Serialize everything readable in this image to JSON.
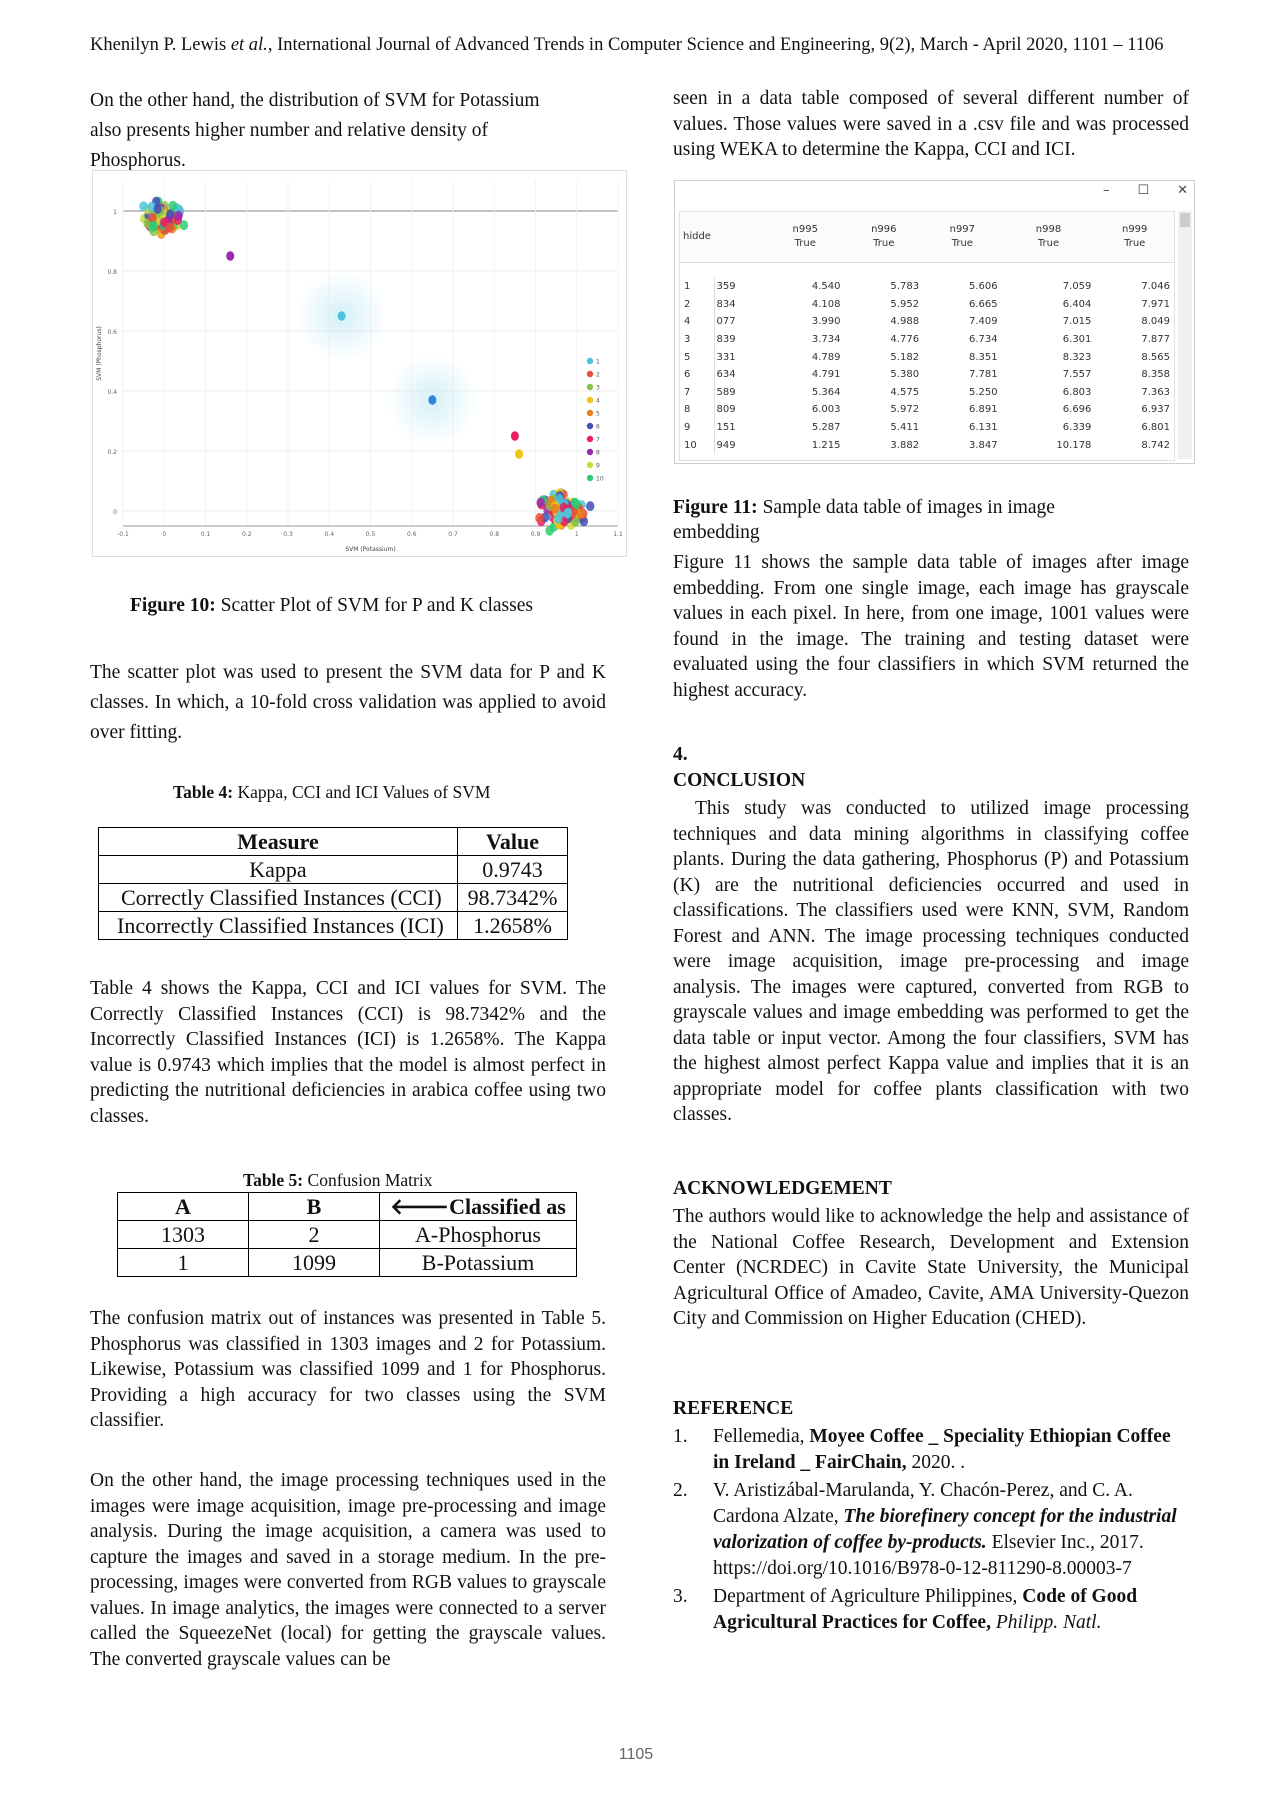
{
  "header": {
    "authors": "Khenilyn P. Lewis ",
    "etal": "et al.",
    "journal": ", International Journal of Advanced Trends in Computer Science and Engineering, 9(2), March - April 2020, 1101 – 1106"
  },
  "left": {
    "intro": "On the other hand, the distribution of SVM for Potassium also presents higher number and relative density of Phosphorus.",
    "fig10_label": "Figure 10:",
    "fig10_text": " Scatter Plot of SVM for P and K classes",
    "scatter_para": "The scatter plot was used to present the SVM data for P and K classes. In which, a 10-fold cross validation was applied to avoid over fitting.",
    "table4_label": "Table 4:",
    "table4_text": " Kappa, CCI and ICI Values of SVM",
    "table4_head": [
      "Measure",
      "Value"
    ],
    "table4_rows": [
      [
        "Kappa",
        "0.9743"
      ],
      [
        "Correctly Classified Instances (CCI)",
        "98.7342%"
      ],
      [
        "Incorrectly Classified Instances (ICI)",
        "1.2658%"
      ]
    ],
    "table4_para": "Table 4 shows the Kappa, CCI and ICI values for SVM. The Correctly Classified Instances (CCI) is 98.7342% and the Incorrectly Classified Instances (ICI) is 1.2658%. The Kappa value is 0.9743 which implies that the model is almost perfect in predicting the nutritional deficiencies in arabica coffee using two classes.",
    "table5_label": "Table 5:",
    "table5_text": " Confusion Matrix",
    "table5_head": [
      "A",
      "B",
      "🡐Classified as"
    ],
    "table5_rows": [
      [
        "1303",
        "2",
        "A-Phosphorus"
      ],
      [
        "1",
        "1099",
        "B-Potassium"
      ]
    ],
    "confusion_para": "The confusion matrix out of instances was presented in Table 5. Phosphorus was classified in 1303 images and 2 for Potassium. Likewise, Potassium was classified 1099 and 1 for Phosphorus. Providing a high accuracy for two classes using the SVM classifier.",
    "processing_para": "On the other hand, the image processing techniques used in the images were image acquisition, image pre-processing and image analysis. During the image acquisition, a camera was used to capture the images and saved in a storage medium. In the pre-processing, images were converted from RGB values to grayscale values. In image analytics, the images were connected to a server called the SqueezeNet (local) for getting the grayscale values. The converted grayscale values can be"
  },
  "right": {
    "top_para": "seen in a data table composed of several different number of values. Those values were saved in a .csv file and was processed using WEKA to determine the Kappa, CCI and ICI.",
    "window_controls": [
      "–",
      "☐",
      "✕"
    ],
    "fig11_label": "Figure 11:",
    "fig11_text": " Sample data table of images in image embedding",
    "fig11_para": "Figure 11 shows the sample data table of images after image embedding. From one single image, each image has grayscale values in each pixel. In here, from one image, 1001 values were found in the image. The training and testing dataset were evaluated using the four classifiers in which SVM returned the highest accuracy.",
    "conclusion_num": "4.",
    "conclusion_title": "CONCLUSION",
    "conclusion_para": "This study was conducted to utilized image processing techniques and data mining algorithms in classifying coffee plants. During the data gathering, Phosphorus (P) and Potassium (K) are the nutritional deficiencies occurred and used in classifications. The classifiers used were KNN, SVM, Random Forest and ANN. The image processing techniques conducted were image acquisition, image pre-processing and image analysis. The images were captured, converted from RGB to grayscale values and image embedding was performed to get the data table or input vector. Among the four classifiers, SVM has the highest almost perfect Kappa value and implies that it is an appropriate model for coffee plants classification with two classes.",
    "ack_title": "ACKNOWLEDGEMENT",
    "ack_para": "The authors would like to acknowledge the help and assistance of the National Coffee Research, Development and Extension Center (NCRDEC) in Cavite State University, the Municipal Agricultural Office of Amadeo, Cavite, AMA University-Quezon City and Commission on Higher Education (CHED).",
    "ref_title": "REFERENCE",
    "ref1_num": "1.",
    "ref1_a": "Fellemedia, ",
    "ref1_b": "Moyee Coffee _ Speciality Ethiopian Coffee in Ireland _ FairChain,",
    "ref1_c": " 2020. .",
    "ref2_num": "2.",
    "ref2_a": "V. Aristizábal-Marulanda, Y. Chacón-Perez, and C. A. Cardona Alzate, ",
    "ref2_b": "The biorefinery concept for the industrial valorization of coffee by-products.",
    "ref2_c": " Elsevier Inc., 2017. https://doi.org/10.1016/B978-0-12-811290-8.00003-7",
    "ref3_num": "3.",
    "ref3_a": "Department of Agriculture Philippines, ",
    "ref3_b": "Code of Good Agricultural Practices for Coffee,",
    "ref3_c": " Philipp. Natl."
  },
  "weka": {
    "corner": "hidde",
    "columns": [
      "n995",
      "n996",
      "n997",
      "n998",
      "n999"
    ],
    "column_sub": "True",
    "rows": [
      [
        "1",
        "359",
        "4.540",
        "5.783",
        "5.606",
        "7.059",
        "7.046"
      ],
      [
        "2",
        "834",
        "4.108",
        "5.952",
        "6.665",
        "6.404",
        "7.971"
      ],
      [
        "4",
        "077",
        "3.990",
        "4.988",
        "7.409",
        "7.015",
        "8.049"
      ],
      [
        "3",
        "839",
        "3.734",
        "4.776",
        "6.734",
        "6.301",
        "7.877"
      ],
      [
        "5",
        "331",
        "4.789",
        "5.182",
        "8.351",
        "8.323",
        "8.565"
      ],
      [
        "6",
        "634",
        "4.791",
        "5.380",
        "7.781",
        "7.557",
        "8.358"
      ],
      [
        "7",
        "589",
        "5.364",
        "4.575",
        "5.250",
        "6.803",
        "7.363"
      ],
      [
        "8",
        "809",
        "6.003",
        "5.972",
        "6.891",
        "6.696",
        "6.937"
      ],
      [
        "9",
        "151",
        "5.287",
        "5.411",
        "6.131",
        "6.339",
        "6.801"
      ],
      [
        "10",
        "949",
        "1.215",
        "3.882",
        "3.847",
        "10.178",
        "8.742"
      ]
    ]
  },
  "chart_data": {
    "type": "scatter",
    "xlabel": "SVM (Potassium)",
    "ylabel": "SVM (Phosphorus)",
    "x_ticks": [
      "-0.1",
      "0",
      "0.1",
      "0.2",
      "0.3",
      "0.4",
      "0.5",
      "0.6",
      "0.7",
      "0.8",
      "0.9",
      "1",
      "1.1"
    ],
    "y_ticks": [
      "0",
      "0.2",
      "0.4",
      "0.6",
      "0.8",
      "1"
    ],
    "xlim": [
      -0.1,
      1.1
    ],
    "ylim": [
      -0.05,
      1.1
    ],
    "legend_labels": [
      "1",
      "2",
      "3",
      "4",
      "5",
      "6",
      "7",
      "8",
      "9",
      "10"
    ],
    "legend_colors": [
      "#4fc3d9",
      "#e74c3c",
      "#8bc34a",
      "#f1c40f",
      "#e67e22",
      "#3f51b5",
      "#e91e63",
      "#9c27b0",
      "#cddc39",
      "#2ecc71"
    ],
    "clusters": [
      {
        "name": "Phosphorus",
        "cx": 0.0,
        "cy": 0.98,
        "n": 90,
        "spread": [
          0.06,
          0.07
        ]
      },
      {
        "name": "Potassium",
        "cx": 0.97,
        "cy": 0.0,
        "n": 110,
        "spread": [
          0.08,
          0.08
        ]
      }
    ],
    "outliers": [
      {
        "x": 0.16,
        "y": 0.85
      },
      {
        "x": 0.43,
        "y": 0.65
      },
      {
        "x": 0.65,
        "y": 0.37
      },
      {
        "x": 0.85,
        "y": 0.25
      },
      {
        "x": 0.86,
        "y": 0.19
      }
    ],
    "page_number": "1105"
  }
}
